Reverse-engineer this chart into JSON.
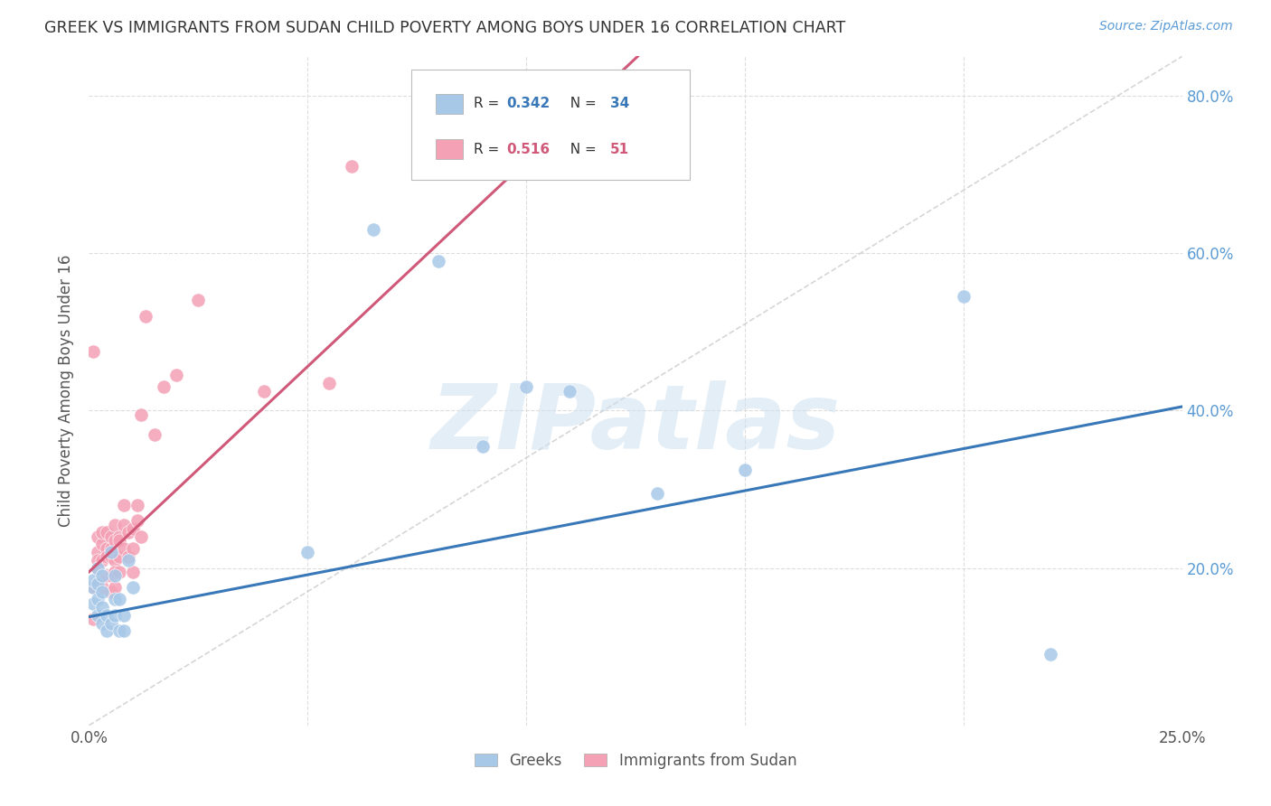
{
  "title": "GREEK VS IMMIGRANTS FROM SUDAN CHILD POVERTY AMONG BOYS UNDER 16 CORRELATION CHART",
  "source": "Source: ZipAtlas.com",
  "ylabel": "Child Poverty Among Boys Under 16",
  "xlim": [
    0.0,
    0.25
  ],
  "ylim": [
    0.0,
    0.85
  ],
  "blue_color": "#a8c8e8",
  "pink_color": "#f4a0b5",
  "blue_line_color": "#3878b8",
  "pink_line_color": "#d05878",
  "diag_color": "#cccccc",
  "grid_color": "#dddddd",
  "watermark": "ZIPatlas",
  "watermark_color": "#cce0f0",
  "background_color": "#ffffff",
  "legend_r1": "0.342",
  "legend_n1": "34",
  "legend_r2": "0.516",
  "legend_n2": "51",
  "legend_num_color": "#3878b8",
  "legend_num2_color": "#d05878",
  "source_color": "#5b9bd5",
  "tick_color": "#5b9bd5",
  "title_color": "#333333",
  "ylabel_color": "#555555",
  "greek_x": [
    0.001,
    0.001,
    0.001,
    0.002,
    0.002,
    0.002,
    0.002,
    0.003,
    0.003,
    0.003,
    0.003,
    0.004,
    0.004,
    0.005,
    0.005,
    0.006,
    0.006,
    0.006,
    0.007,
    0.007,
    0.008,
    0.008,
    0.009,
    0.01,
    0.05,
    0.065,
    0.08,
    0.09,
    0.1,
    0.11,
    0.13,
    0.15,
    0.2,
    0.22
  ],
  "greek_y": [
    0.175,
    0.155,
    0.185,
    0.16,
    0.14,
    0.18,
    0.2,
    0.17,
    0.13,
    0.15,
    0.19,
    0.12,
    0.14,
    0.13,
    0.22,
    0.14,
    0.16,
    0.19,
    0.12,
    0.16,
    0.14,
    0.12,
    0.21,
    0.175,
    0.22,
    0.63,
    0.59,
    0.355,
    0.43,
    0.425,
    0.295,
    0.325,
    0.545,
    0.09
  ],
  "sudan_x": [
    0.001,
    0.001,
    0.001,
    0.002,
    0.002,
    0.002,
    0.002,
    0.002,
    0.003,
    0.003,
    0.003,
    0.003,
    0.003,
    0.004,
    0.004,
    0.004,
    0.004,
    0.005,
    0.005,
    0.005,
    0.005,
    0.005,
    0.006,
    0.006,
    0.006,
    0.006,
    0.006,
    0.007,
    0.007,
    0.007,
    0.007,
    0.008,
    0.008,
    0.008,
    0.009,
    0.009,
    0.01,
    0.01,
    0.01,
    0.011,
    0.011,
    0.012,
    0.012,
    0.013,
    0.015,
    0.017,
    0.02,
    0.025,
    0.04,
    0.055,
    0.06
  ],
  "sudan_y": [
    0.475,
    0.175,
    0.135,
    0.22,
    0.2,
    0.21,
    0.18,
    0.24,
    0.23,
    0.21,
    0.19,
    0.245,
    0.175,
    0.225,
    0.215,
    0.245,
    0.19,
    0.215,
    0.24,
    0.19,
    0.225,
    0.17,
    0.21,
    0.235,
    0.255,
    0.195,
    0.175,
    0.24,
    0.235,
    0.215,
    0.195,
    0.28,
    0.255,
    0.225,
    0.245,
    0.215,
    0.25,
    0.225,
    0.195,
    0.28,
    0.26,
    0.24,
    0.395,
    0.52,
    0.37,
    0.43,
    0.445,
    0.54,
    0.425,
    0.435,
    0.71
  ]
}
